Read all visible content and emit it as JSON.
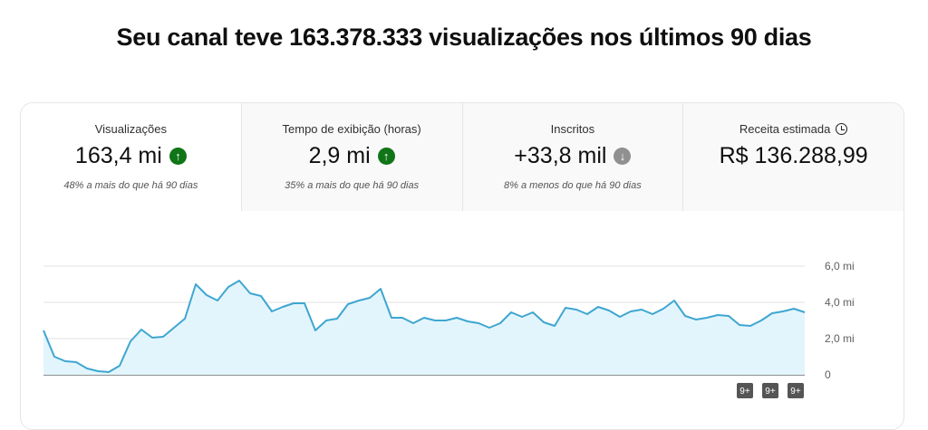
{
  "title": "Seu canal teve 163.378.333 visualizações nos últimos 90 dias",
  "tabs": [
    {
      "label": "Visualizações",
      "value": "163,4 mi",
      "trend": "up",
      "note": "48% a mais do que há 90 dias",
      "selected": true
    },
    {
      "label": "Tempo de exibição (horas)",
      "value": "2,9 mi",
      "trend": "up",
      "note": "35% a mais do que há 90 dias",
      "selected": false
    },
    {
      "label": "Inscritos",
      "value": "+33,8 mil",
      "trend": "down",
      "note": "8% a menos do que há 90 dias",
      "selected": false
    },
    {
      "label": "Receita estimada",
      "value": "R$ 136.288,99",
      "icon": "clock-icon",
      "selected": false
    }
  ],
  "colors": {
    "up": "#107516",
    "down": "#909090",
    "line": "#3ea6d1",
    "fill": "#e3f5fc"
  },
  "chart_data": {
    "type": "area",
    "ylim": [
      0,
      6
    ],
    "yticks": [
      "0",
      "2,0 mi",
      "4,0 mi",
      "6,0 mi"
    ],
    "ytick_values": [
      0,
      2,
      4,
      6
    ],
    "grid": true,
    "series": [
      {
        "values": [
          2.45,
          1.0,
          0.75,
          0.7,
          0.35,
          0.2,
          0.15,
          0.5,
          1.85,
          2.5,
          2.05,
          2.1,
          2.6,
          3.1,
          5.0,
          4.4,
          4.1,
          4.85,
          5.2,
          4.5,
          4.35,
          3.5,
          3.75,
          3.95,
          3.95,
          2.45,
          3.0,
          3.1,
          3.9,
          4.1,
          4.25,
          4.75,
          3.15,
          3.15,
          2.85,
          3.15,
          3.0,
          3.0,
          3.15,
          2.95,
          2.85,
          2.6,
          2.85,
          3.45,
          3.2,
          3.45,
          2.9,
          2.7,
          3.7,
          3.6,
          3.35,
          3.75,
          3.55,
          3.2,
          3.5,
          3.6,
          3.35,
          3.65,
          4.1,
          3.25,
          3.05,
          3.15,
          3.3,
          3.25,
          2.75,
          2.7,
          3.0,
          3.4,
          3.5,
          3.65,
          3.45
        ]
      }
    ],
    "annotations": [
      "9+",
      "9+",
      "9+"
    ]
  }
}
